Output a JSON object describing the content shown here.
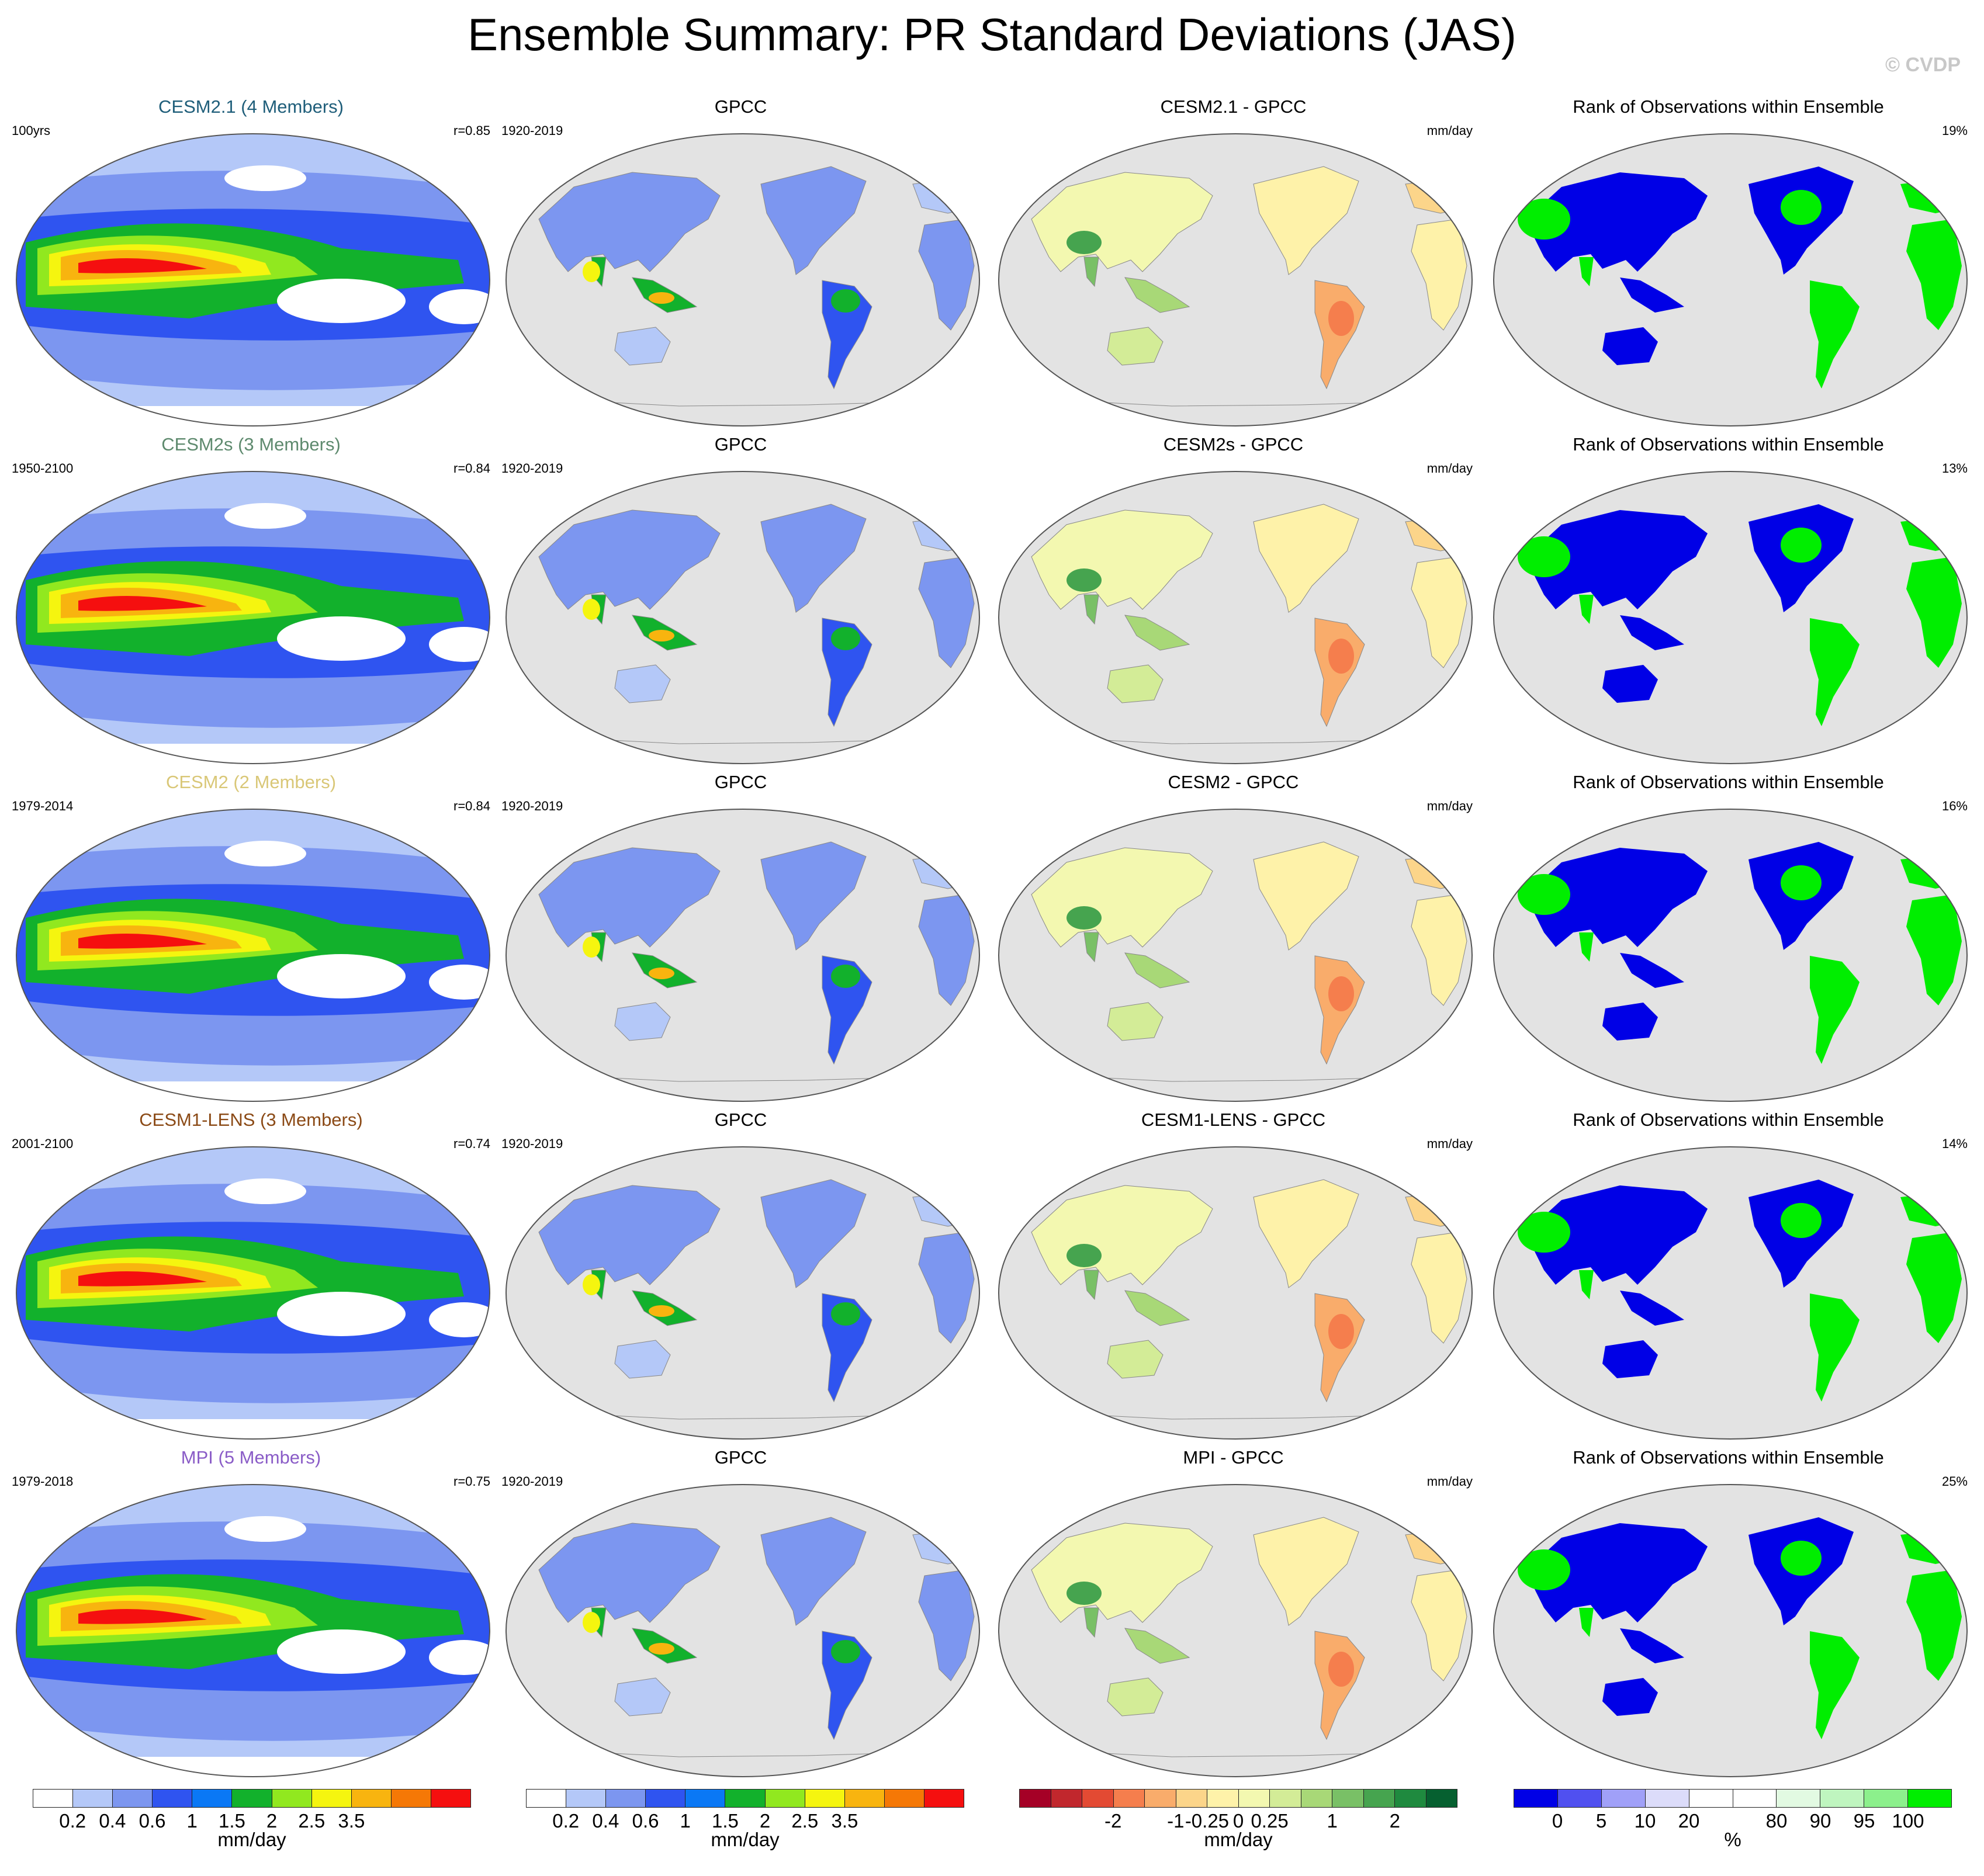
{
  "title": "Ensemble Summary: PR Standard Deviations (JAS)",
  "copyright": "© CVDP",
  "rows": [
    {
      "model": {
        "title": "CESM2.1 (4 Members)",
        "color": "#1f5e7a",
        "left": "100yrs",
        "right": "r=0.85"
      },
      "obs": {
        "title": "GPCC",
        "left": "1920-2019",
        "right": ""
      },
      "diff": {
        "title": "CESM2.1 - GPCC",
        "left": "",
        "right": "mm/day"
      },
      "rank": {
        "title": "Rank of Observations within Ensemble",
        "left": "",
        "right": "19%"
      }
    },
    {
      "model": {
        "title": "CESM2s (3 Members)",
        "color": "#5e8a6e",
        "left": "1950-2100",
        "right": "r=0.84"
      },
      "obs": {
        "title": "GPCC",
        "left": "1920-2019",
        "right": ""
      },
      "diff": {
        "title": "CESM2s - GPCC",
        "left": "",
        "right": "mm/day"
      },
      "rank": {
        "title": "Rank of Observations within Ensemble",
        "left": "",
        "right": "13%"
      }
    },
    {
      "model": {
        "title": "CESM2 (2 Members)",
        "color": "#d9c777",
        "left": "1979-2014",
        "right": "r=0.84"
      },
      "obs": {
        "title": "GPCC",
        "left": "1920-2019",
        "right": ""
      },
      "diff": {
        "title": "CESM2 - GPCC",
        "left": "",
        "right": "mm/day"
      },
      "rank": {
        "title": "Rank of Observations within Ensemble",
        "left": "",
        "right": "16%"
      }
    },
    {
      "model": {
        "title": "CESM1-LENS (3 Members)",
        "color": "#8b4a16",
        "left": "2001-2100",
        "right": "r=0.74"
      },
      "obs": {
        "title": "GPCC",
        "left": "1920-2019",
        "right": ""
      },
      "diff": {
        "title": "CESM1-LENS - GPCC",
        "left": "",
        "right": "mm/day"
      },
      "rank": {
        "title": "Rank of Observations within Ensemble",
        "left": "",
        "right": "14%"
      }
    },
    {
      "model": {
        "title": "MPI (5 Members)",
        "color": "#8a5cc7",
        "left": "1979-2018",
        "right": "r=0.75"
      },
      "obs": {
        "title": "GPCC",
        "left": "1920-2019",
        "right": ""
      },
      "diff": {
        "title": "MPI - GPCC",
        "left": "",
        "right": "mm/day"
      },
      "rank": {
        "title": "Rank of Observations within Ensemble",
        "left": "",
        "right": "25%"
      }
    }
  ],
  "colorbars": [
    {
      "colors": [
        "#ffffff",
        "#b4c8f8",
        "#7c96f0",
        "#2f54f0",
        "#0a78f5",
        "#12b12c",
        "#91e81f",
        "#f5f50f",
        "#f8b40f",
        "#f57806",
        "#f50f0f"
      ],
      "ticks": [
        "0.2",
        "0.4",
        "0.6",
        "1",
        "1.5",
        "2",
        "2.5",
        "3.5"
      ],
      "unit": "mm/day"
    },
    {
      "colors": [
        "#ffffff",
        "#b4c8f8",
        "#7c96f0",
        "#2f54f0",
        "#0a78f5",
        "#12b12c",
        "#91e81f",
        "#f5f50f",
        "#f8b40f",
        "#f57806",
        "#f50f0f"
      ],
      "ticks": [
        "0.2",
        "0.4",
        "0.6",
        "1",
        "1.5",
        "2",
        "2.5",
        "3.5"
      ],
      "unit": "mm/day"
    },
    {
      "colors": [
        "#a50026",
        "#c1272d",
        "#e34a33",
        "#f57e4d",
        "#f9ac6b",
        "#fcd58a",
        "#fef2a9",
        "#f3f8b0",
        "#d3ec97",
        "#a8d877",
        "#79c066",
        "#46a44f",
        "#1f8a3f",
        "#066030"
      ],
      "ticks": [
        "-2",
        "-1",
        "-0.25",
        "0",
        "0.25",
        "1",
        "2"
      ],
      "unit": "mm/day"
    },
    {
      "colors": [
        "#0000e6",
        "#5050f0",
        "#a0a0f8",
        "#dcdcfa",
        "#ffffff",
        "#ffffff",
        "#e2fae2",
        "#bff5bf",
        "#8cf08c",
        "#00ee00"
      ],
      "ticks": [
        "0",
        "5",
        "10",
        "20",
        "80",
        "90",
        "95",
        "100"
      ],
      "unit": "%"
    }
  ]
}
